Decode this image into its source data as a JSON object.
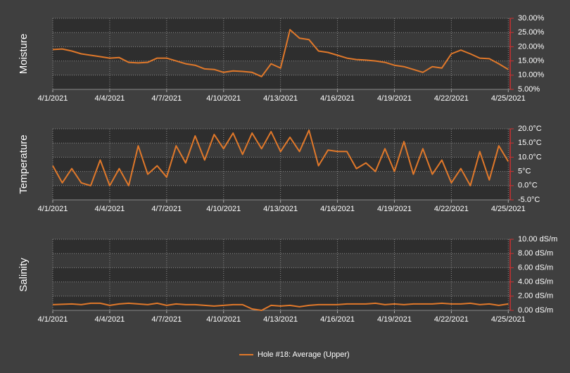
{
  "chart_data": [
    {
      "type": "line",
      "ylabel": "Moisture",
      "x": [
        0,
        0.5,
        1,
        1.5,
        2,
        2.5,
        3,
        3.5,
        4,
        4.5,
        5,
        5.5,
        6,
        6.5,
        7,
        7.5,
        8,
        8.5,
        9,
        9.5,
        10,
        10.5,
        11,
        11.5,
        12,
        12.5,
        13,
        13.5,
        14,
        14.5,
        15,
        15.5,
        16,
        16.5,
        17,
        17.5,
        18,
        18.5,
        19,
        19.5,
        20,
        20.5,
        21,
        21.5,
        22,
        22.5,
        23,
        23.5,
        24
      ],
      "xlim": [
        0,
        24.1
      ],
      "xticks": [
        {
          "value": 0,
          "label": "4/1/2021"
        },
        {
          "value": 3,
          "label": "4/4/2021"
        },
        {
          "value": 6,
          "label": "4/7/2021"
        },
        {
          "value": 9,
          "label": "4/10/2021"
        },
        {
          "value": 12,
          "label": "4/13/2021"
        },
        {
          "value": 15,
          "label": "4/16/2021"
        },
        {
          "value": 18,
          "label": "4/19/2021"
        },
        {
          "value": 21,
          "label": "4/22/2021"
        },
        {
          "value": 24,
          "label": "4/25/2021"
        }
      ],
      "ylim": [
        5,
        30
      ],
      "yticks": [
        {
          "value": 5,
          "label": "5.00%"
        },
        {
          "value": 10,
          "label": "10.00%"
        },
        {
          "value": 15,
          "label": "15.00%"
        },
        {
          "value": 20,
          "label": "20.00%"
        },
        {
          "value": 25,
          "label": "25.00%"
        },
        {
          "value": 30,
          "label": "30.00%"
        }
      ],
      "series": [
        {
          "color": "#e0782a",
          "values": [
            19,
            19.2,
            18.5,
            17.5,
            17,
            16.5,
            16,
            16.2,
            14.5,
            14.3,
            14.5,
            16,
            16,
            15,
            14,
            13.5,
            12.2,
            12,
            11,
            11.5,
            11.3,
            11,
            9.5,
            14,
            12.5,
            26,
            23,
            22.5,
            18.5,
            18,
            17,
            16,
            15.5,
            15.3,
            15,
            14.5,
            13.5,
            13,
            12,
            11,
            13,
            12.5,
            17.5,
            18.8,
            17.5,
            16,
            15.8,
            14,
            12
          ]
        }
      ]
    },
    {
      "type": "line",
      "ylabel": "Temperature",
      "x": [
        0,
        0.5,
        1,
        1.5,
        2,
        2.5,
        3,
        3.5,
        4,
        4.5,
        5,
        5.5,
        6,
        6.5,
        7,
        7.5,
        8,
        8.5,
        9,
        9.5,
        10,
        10.5,
        11,
        11.5,
        12,
        12.5,
        13,
        13.5,
        14,
        14.5,
        15,
        15.5,
        16,
        16.5,
        17,
        17.5,
        18,
        18.5,
        19,
        19.5,
        20,
        20.5,
        21,
        21.5,
        22,
        22.5,
        23,
        23.5,
        24
      ],
      "xlim": [
        0,
        24.1
      ],
      "xticks": [
        {
          "value": 0,
          "label": "4/1/2021"
        },
        {
          "value": 3,
          "label": "4/4/2021"
        },
        {
          "value": 6,
          "label": "4/7/2021"
        },
        {
          "value": 9,
          "label": "4/10/2021"
        },
        {
          "value": 12,
          "label": "4/13/2021"
        },
        {
          "value": 15,
          "label": "4/16/2021"
        },
        {
          "value": 18,
          "label": "4/19/2021"
        },
        {
          "value": 21,
          "label": "4/22/2021"
        },
        {
          "value": 24,
          "label": "4/25/2021"
        }
      ],
      "ylim": [
        -5,
        20
      ],
      "yticks": [
        {
          "value": -5,
          "label": "-5.0°C"
        },
        {
          "value": 0,
          "label": "0.0°C"
        },
        {
          "value": 5,
          "label": "5°C"
        },
        {
          "value": 10,
          "label": "10.0°C"
        },
        {
          "value": 15,
          "label": "15.0°C"
        },
        {
          "value": 20,
          "label": "20.0°C"
        }
      ],
      "series": [
        {
          "color": "#e0782a",
          "values": [
            7,
            1,
            6,
            1,
            0,
            9,
            0,
            6,
            0,
            14,
            4,
            7,
            3,
            14,
            8,
            17.5,
            9,
            18,
            13,
            18.5,
            11,
            18.5,
            13,
            19,
            12,
            17,
            12,
            19.5,
            7,
            12.5,
            12,
            12,
            6,
            8,
            5,
            13,
            5,
            15.5,
            4,
            13,
            4,
            9,
            1,
            6,
            0,
            12,
            2,
            14,
            8.5
          ]
        }
      ]
    },
    {
      "type": "line",
      "ylabel": "Salinity",
      "x": [
        0,
        0.5,
        1,
        1.5,
        2,
        2.5,
        3,
        3.5,
        4,
        4.5,
        5,
        5.5,
        6,
        6.5,
        7,
        7.5,
        8,
        8.5,
        9,
        9.5,
        10,
        10.5,
        11,
        11.5,
        12,
        12.5,
        13,
        13.5,
        14,
        14.5,
        15,
        15.5,
        16,
        16.5,
        17,
        17.5,
        18,
        18.5,
        19,
        19.5,
        20,
        20.5,
        21,
        21.5,
        22,
        22.5,
        23,
        23.5,
        24
      ],
      "xlim": [
        0,
        24.1
      ],
      "xticks": [
        {
          "value": 0,
          "label": "4/1/2021"
        },
        {
          "value": 3,
          "label": "4/4/2021"
        },
        {
          "value": 6,
          "label": "4/7/2021"
        },
        {
          "value": 9,
          "label": "4/10/2021"
        },
        {
          "value": 12,
          "label": "4/13/2021"
        },
        {
          "value": 15,
          "label": "4/16/2021"
        },
        {
          "value": 18,
          "label": "4/19/2021"
        },
        {
          "value": 21,
          "label": "4/22/2021"
        },
        {
          "value": 24,
          "label": "4/25/2021"
        }
      ],
      "ylim": [
        0,
        10
      ],
      "yticks": [
        {
          "value": 0,
          "label": "0.00 dS/m"
        },
        {
          "value": 2,
          "label": "2.00 dS/m"
        },
        {
          "value": 4,
          "label": "4.00 dS/m"
        },
        {
          "value": 6,
          "label": "6.00 dS/m"
        },
        {
          "value": 8,
          "label": "8.00 dS/m"
        },
        {
          "value": 10,
          "label": "10.00 dS/m"
        }
      ],
      "series": [
        {
          "color": "#e0782a",
          "values": [
            0.8,
            0.85,
            0.9,
            0.8,
            1.0,
            1.0,
            0.7,
            0.9,
            1.0,
            0.9,
            0.8,
            1.0,
            0.7,
            0.9,
            0.8,
            0.8,
            0.7,
            0.6,
            0.7,
            0.8,
            0.8,
            0.2,
            0.0,
            0.7,
            0.6,
            0.7,
            0.5,
            0.7,
            0.8,
            0.8,
            0.8,
            0.9,
            0.9,
            0.9,
            1.0,
            0.8,
            0.9,
            0.8,
            0.9,
            0.9,
            0.9,
            1.0,
            0.9,
            0.9,
            1.0,
            0.8,
            0.9,
            0.7,
            0.9
          ]
        }
      ]
    }
  ],
  "legend": {
    "name": "Hole #18: Average (Upper)",
    "color": "#e0782a"
  }
}
